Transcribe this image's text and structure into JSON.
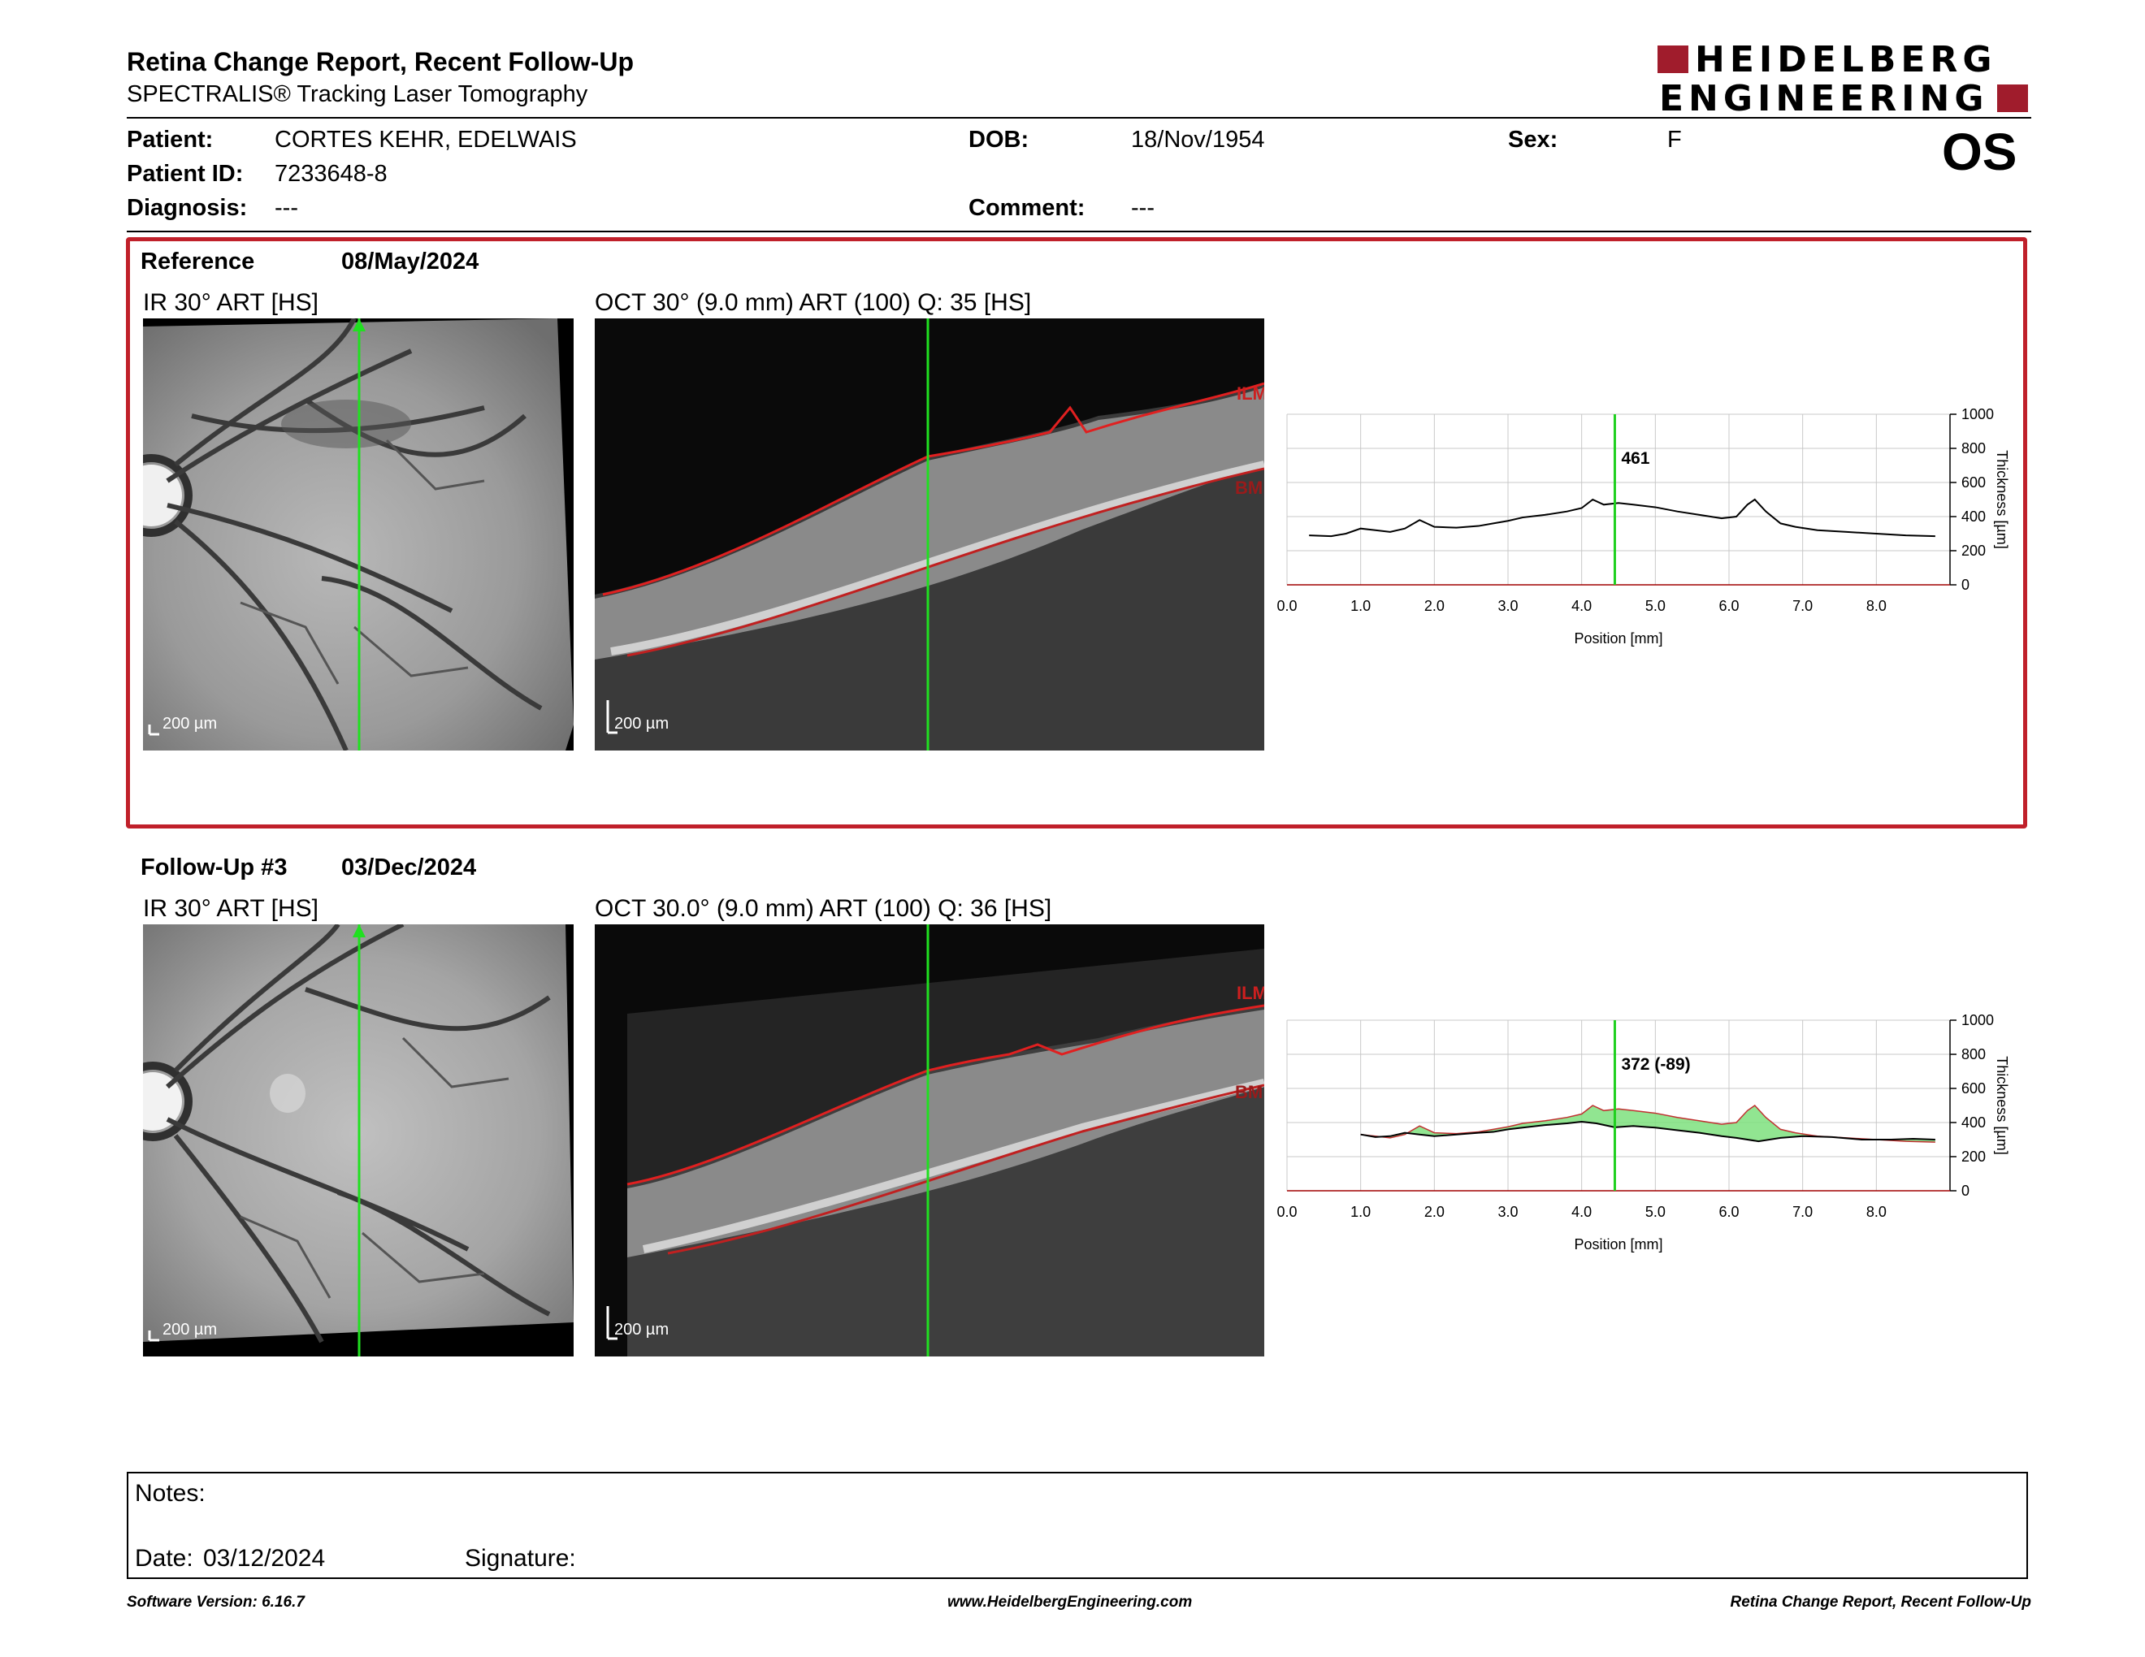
{
  "header": {
    "title": "Retina Change Report, Recent Follow-Up",
    "subtitle": "SPECTRALIS® Tracking Laser Tomography",
    "logo_line1": "HEIDELBERG",
    "logo_line2": "ENGINEERING",
    "brand_color": "#a01c2c"
  },
  "patient": {
    "name_label": "Patient:",
    "name": "CORTES KEHR, EDELWAIS",
    "id_label": "Patient ID:",
    "id": "7233648-8",
    "diagnosis_label": "Diagnosis:",
    "diagnosis": "---",
    "dob_label": "DOB:",
    "dob": "18/Nov/1954",
    "comment_label": "Comment:",
    "comment": "---",
    "sex_label": "Sex:",
    "sex": "F",
    "eye": "OS"
  },
  "reference": {
    "label": "Reference",
    "date": "08/May/2024",
    "ir_title": "IR 30° ART [HS]",
    "oct_title": "OCT 30° (9.0 mm) ART (100) Q: 35 [HS]",
    "scale": "200 µm",
    "ilm": "ILM",
    "bm": "BM",
    "cursor_value": "461"
  },
  "followup": {
    "label": "Follow-Up #3",
    "date": "03/Dec/2024",
    "ir_title": "IR 30° ART [HS]",
    "oct_title": "OCT 30.0° (9.0 mm) ART (100) Q: 36 [HS]",
    "scale": "200 µm",
    "ilm": "ILM",
    "bm": "BM",
    "cursor_value": "372 (-89)"
  },
  "chart_data": [
    {
      "type": "line",
      "xlabel": "Position [mm]",
      "ylabel": "Thickness [µm]",
      "xlim": [
        0,
        9
      ],
      "ylim": [
        0,
        1000
      ],
      "x_ticks": [
        "0.0",
        "1.0",
        "2.0",
        "3.0",
        "4.0",
        "5.0",
        "6.0",
        "7.0",
        "8.0"
      ],
      "y_ticks": [
        "0",
        "200",
        "400",
        "600",
        "800",
        "1000"
      ],
      "grid": true,
      "cursor_x": 4.45,
      "cursor_label": "461",
      "series": [
        {
          "values": [
            [
              0.3,
              290
            ],
            [
              0.6,
              285
            ],
            [
              0.8,
              300
            ],
            [
              1.0,
              330
            ],
            [
              1.2,
              320
            ],
            [
              1.4,
              310
            ],
            [
              1.6,
              330
            ],
            [
              1.8,
              380
            ],
            [
              2.0,
              340
            ],
            [
              2.3,
              335
            ],
            [
              2.6,
              345
            ],
            [
              2.8,
              360
            ],
            [
              3.0,
              375
            ],
            [
              3.2,
              395
            ],
            [
              3.5,
              410
            ],
            [
              3.8,
              430
            ],
            [
              4.0,
              450
            ],
            [
              4.15,
              500
            ],
            [
              4.3,
              470
            ],
            [
              4.5,
              480
            ],
            [
              4.7,
              470
            ],
            [
              5.0,
              455
            ],
            [
              5.3,
              430
            ],
            [
              5.6,
              410
            ],
            [
              5.9,
              390
            ],
            [
              6.1,
              400
            ],
            [
              6.25,
              470
            ],
            [
              6.35,
              500
            ],
            [
              6.5,
              430
            ],
            [
              6.7,
              360
            ],
            [
              6.9,
              340
            ],
            [
              7.2,
              320
            ],
            [
              7.6,
              310
            ],
            [
              8.0,
              300
            ],
            [
              8.4,
              290
            ],
            [
              8.8,
              285
            ]
          ]
        }
      ]
    },
    {
      "type": "area",
      "xlabel": "Position [mm]",
      "ylabel": "Thickness [µm]",
      "xlim": [
        0,
        9
      ],
      "ylim": [
        0,
        1000
      ],
      "x_ticks": [
        "0.0",
        "1.0",
        "2.0",
        "3.0",
        "4.0",
        "5.0",
        "6.0",
        "7.0",
        "8.0"
      ],
      "y_ticks": [
        "0",
        "200",
        "400",
        "600",
        "800",
        "1000"
      ],
      "grid": true,
      "cursor_x": 4.45,
      "cursor_label": "372 (-89)",
      "series": [
        {
          "values": [
            [
              1.0,
              330
            ],
            [
              1.2,
              315
            ],
            [
              1.4,
              320
            ],
            [
              1.6,
              340
            ],
            [
              1.8,
              330
            ],
            [
              2.0,
              320
            ],
            [
              2.3,
              330
            ],
            [
              2.6,
              340
            ],
            [
              2.8,
              345
            ],
            [
              3.0,
              360
            ],
            [
              3.2,
              370
            ],
            [
              3.5,
              385
            ],
            [
              3.8,
              395
            ],
            [
              4.0,
              405
            ],
            [
              4.2,
              395
            ],
            [
              4.45,
              372
            ],
            [
              4.7,
              380
            ],
            [
              5.0,
              370
            ],
            [
              5.3,
              355
            ],
            [
              5.6,
              340
            ],
            [
              5.9,
              320
            ],
            [
              6.1,
              310
            ],
            [
              6.4,
              290
            ],
            [
              6.7,
              310
            ],
            [
              7.0,
              320
            ],
            [
              7.4,
              315
            ],
            [
              7.8,
              300
            ],
            [
              8.2,
              300
            ],
            [
              8.5,
              305
            ],
            [
              8.8,
              300
            ]
          ]
        },
        {
          "values": [
            [
              1.0,
              330
            ],
            [
              1.2,
              320
            ],
            [
              1.4,
              310
            ],
            [
              1.6,
              330
            ],
            [
              1.8,
              380
            ],
            [
              2.0,
              340
            ],
            [
              2.3,
              335
            ],
            [
              2.6,
              345
            ],
            [
              2.8,
              360
            ],
            [
              3.0,
              375
            ],
            [
              3.2,
              395
            ],
            [
              3.5,
              410
            ],
            [
              3.8,
              430
            ],
            [
              4.0,
              450
            ],
            [
              4.15,
              500
            ],
            [
              4.3,
              470
            ],
            [
              4.5,
              480
            ],
            [
              4.7,
              470
            ],
            [
              5.0,
              455
            ],
            [
              5.3,
              430
            ],
            [
              5.6,
              410
            ],
            [
              5.9,
              390
            ],
            [
              6.1,
              400
            ],
            [
              6.25,
              470
            ],
            [
              6.35,
              500
            ],
            [
              6.5,
              430
            ],
            [
              6.7,
              360
            ],
            [
              6.9,
              340
            ],
            [
              7.2,
              320
            ],
            [
              7.6,
              310
            ],
            [
              8.0,
              300
            ],
            [
              8.4,
              290
            ],
            [
              8.8,
              285
            ]
          ]
        }
      ]
    }
  ],
  "notes": {
    "notes_label": "Notes:",
    "date_label": "Date:",
    "date": "03/12/2024",
    "signature_label": "Signature:"
  },
  "footer": {
    "software": "Software Version: 6.16.7",
    "website": "www.HeidelbergEngineering.com",
    "report": "Retina Change Report, Recent Follow-Up"
  }
}
